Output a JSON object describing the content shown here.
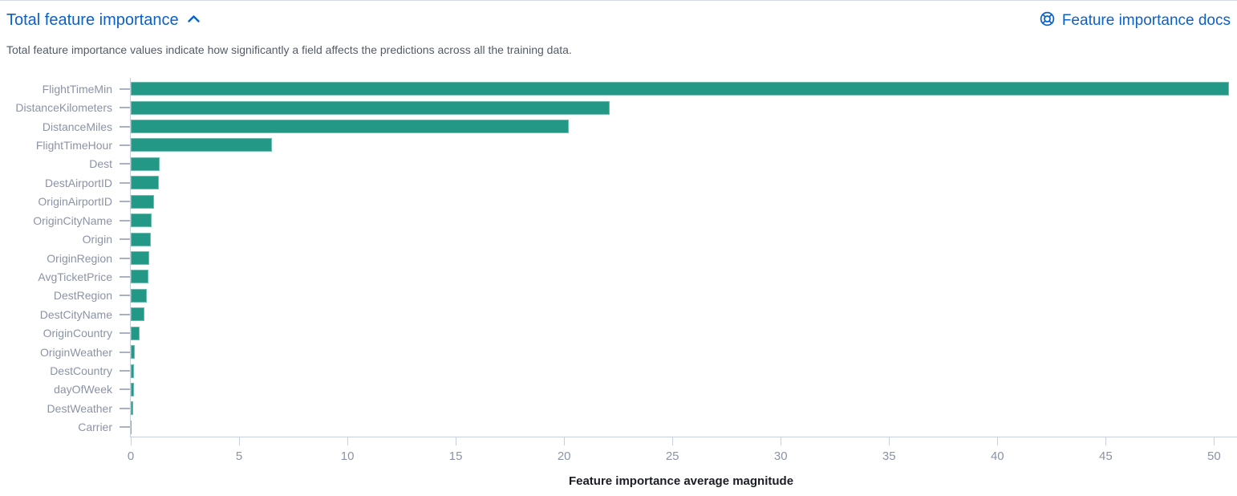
{
  "header": {
    "title": "Total feature importance",
    "docs_link": "Feature importance docs",
    "description": "Total feature importance values indicate how significantly a field affects the predictions across all the training data."
  },
  "icons": {
    "collapse": "chevron-up-icon",
    "docs": "lifering-icon"
  },
  "colors": {
    "bar": "#239887",
    "link": "#0b61c8",
    "axis_line": "#c8cfdd",
    "tick_dash": "#a9b1c2",
    "axis_text": "#8b93a6",
    "description_text": "#545b66",
    "axis_title_text": "#1a1d23"
  },
  "chart_data": {
    "type": "bar",
    "orientation": "horizontal",
    "title": "",
    "xlabel": "Feature importance average magnitude",
    "ylabel": "",
    "categories": [
      "FlightTimeMin",
      "DistanceKilometers",
      "DistanceMiles",
      "FlightTimeHour",
      "Dest",
      "DestAirportID",
      "OriginAirportID",
      "OriginCityName",
      "Origin",
      "OriginRegion",
      "AvgTicketPrice",
      "DestRegion",
      "DestCityName",
      "OriginCountry",
      "OriginWeather",
      "DestCountry",
      "dayOfWeek",
      "DestWeather",
      "Carrier"
    ],
    "values": [
      50.7,
      22.1,
      20.2,
      6.5,
      1.33,
      1.3,
      1.07,
      0.97,
      0.92,
      0.86,
      0.81,
      0.73,
      0.62,
      0.39,
      0.19,
      0.16,
      0.14,
      0.1,
      0.04
    ],
    "x_ticks": [
      0,
      5,
      10,
      15,
      20,
      25,
      30,
      35,
      40,
      45,
      50
    ],
    "xlim": [
      0,
      50.8
    ],
    "grid": false,
    "legend": false
  }
}
